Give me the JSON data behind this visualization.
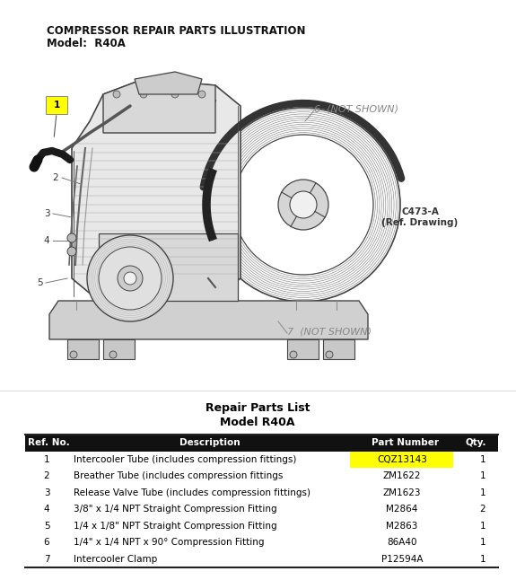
{
  "title_line1": "COMPRESSOR REPAIR PARTS ILLUSTRATION",
  "title_line2": "Model:  R40A",
  "table_title1": "Repair Parts List",
  "table_title2": "Model R40A",
  "col_headers": [
    "Ref. No.",
    "Description",
    "Part Number",
    "Qty."
  ],
  "rows": [
    [
      "1",
      "Intercooler Tube (includes compression fittings)",
      "CQZ13143",
      "1"
    ],
    [
      "2",
      "Breather Tube (includes compression fittings",
      "ZM1622",
      "1"
    ],
    [
      "3",
      "Release Valve Tube (includes compression fittings)",
      "ZM1623",
      "1"
    ],
    [
      "4",
      "3/8\" x 1/4 NPT Straight Compression Fitting",
      "M2864",
      "2"
    ],
    [
      "5",
      "1/4 x 1/8\" NPT Straight Compression Fitting",
      "M2863",
      "1"
    ],
    [
      "6",
      "1/4\" x 1/4 NPT x 90° Compression Fitting",
      "86A40",
      "1"
    ],
    [
      "7",
      "Intercooler Clamp",
      "P12594A",
      "1"
    ]
  ],
  "highlight_row": 0,
  "highlight_color": "#FFFF00",
  "ref_drawing": "C473-A\n(Ref. Drawing)",
  "label1_box_color": "#FFFF00",
  "bg_color": "#FFFFFF",
  "text_color": "#000000"
}
